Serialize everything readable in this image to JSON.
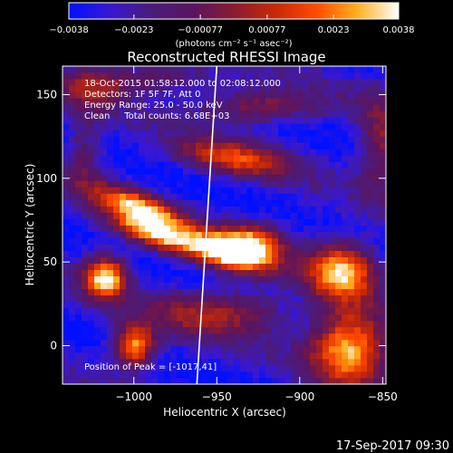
{
  "chart_data": {
    "type": "heatmap",
    "title": "Reconstructed RHESSI Image",
    "xlabel": "Heliocentric X (arcsec)",
    "ylabel": "Heliocentric Y (arcsec)",
    "xlim": [
      -1043,
      -848
    ],
    "ylim": [
      -23,
      167
    ],
    "x_ticks": [
      -1000,
      -950,
      -900,
      -850
    ],
    "x_tick_labels": [
      "−1000",
      "−950",
      "−900",
      "−850"
    ],
    "y_ticks": [
      0,
      50,
      100,
      150
    ],
    "y_tick_labels": [
      "0",
      "50",
      "100",
      "150"
    ],
    "colorbar": {
      "min": -0.0038,
      "max": 0.0038,
      "ticks": [
        -0.0038,
        -0.0023,
        -0.00077,
        0.00077,
        0.0023,
        0.0038
      ],
      "tick_labels": [
        "−0.0038",
        "−0.0023",
        "−0.00077",
        "0.00077",
        "0.0023",
        "0.0038"
      ],
      "units_label": "(photons cm⁻² s⁻¹ asec⁻²)",
      "colors": [
        "#0010ff",
        "#3a18d0",
        "#4a1c7c",
        "#5a1460",
        "#8a1c30",
        "#c82808",
        "#ff4a00",
        "#ffb020",
        "#ffffff"
      ]
    },
    "sources": [
      {
        "x": -1017,
        "y": 41,
        "weight": 1.05,
        "sx": 9,
        "sy": 9
      },
      {
        "x": -1000,
        "y": 0,
        "weight": 0.95,
        "sx": 9,
        "sy": 9
      },
      {
        "x": -997,
        "y": 83,
        "weight": 0.9,
        "sx": 20,
        "sy": 6,
        "angle": -0.35
      },
      {
        "x": -990,
        "y": 68,
        "weight": 0.85,
        "sx": 18,
        "sy": 6,
        "angle": -0.3
      },
      {
        "x": -948,
        "y": 57,
        "weight": 0.9,
        "sx": 20,
        "sy": 7,
        "angle": -0.25
      },
      {
        "x": -930,
        "y": 60,
        "weight": 0.9,
        "sx": 14,
        "sy": 9
      },
      {
        "x": -940,
        "y": 112,
        "weight": 0.65,
        "sx": 24,
        "sy": 7,
        "angle": -0.15
      },
      {
        "x": -925,
        "y": 143,
        "weight": 0.5,
        "sx": 26,
        "sy": 7
      },
      {
        "x": -875,
        "y": 45,
        "weight": 0.95,
        "sx": 14,
        "sy": 12
      },
      {
        "x": -870,
        "y": 0,
        "weight": 1.0,
        "sx": 16,
        "sy": 16
      },
      {
        "x": -850,
        "y": 120,
        "weight": 0.5,
        "sx": 10,
        "sy": 20
      },
      {
        "x": -1025,
        "y": 155,
        "weight": 0.45,
        "sx": 14,
        "sy": 9
      },
      {
        "x": -985,
        "y": 160,
        "weight": 0.4,
        "sx": 22,
        "sy": 6
      },
      {
        "x": -1030,
        "y": 115,
        "weight": 0.35,
        "sx": 8,
        "sy": 16
      },
      {
        "x": -965,
        "y": 20,
        "weight": 0.4,
        "sx": 20,
        "sy": 10
      },
      {
        "x": -930,
        "y": 20,
        "weight": 0.35,
        "sx": 18,
        "sy": 10
      }
    ],
    "limb_line": {
      "x1": -962,
      "y1": -23,
      "x2": -950,
      "y2": 167
    },
    "annotations": {
      "time_range": "18-Oct-2015 01:58:12.000 to 02:08:12.000",
      "detectors": "Detectors: 1F 5F 7F, Att 0",
      "energy_range": "Energy Range: 25.0 - 50.0 keV",
      "method_counts": "Clean     Total counts: 6.68E+03",
      "peak_position": "Position of Peak = [-1017,41]"
    }
  },
  "footer": {
    "timestamp": "17-Sep-2017 09:30"
  }
}
